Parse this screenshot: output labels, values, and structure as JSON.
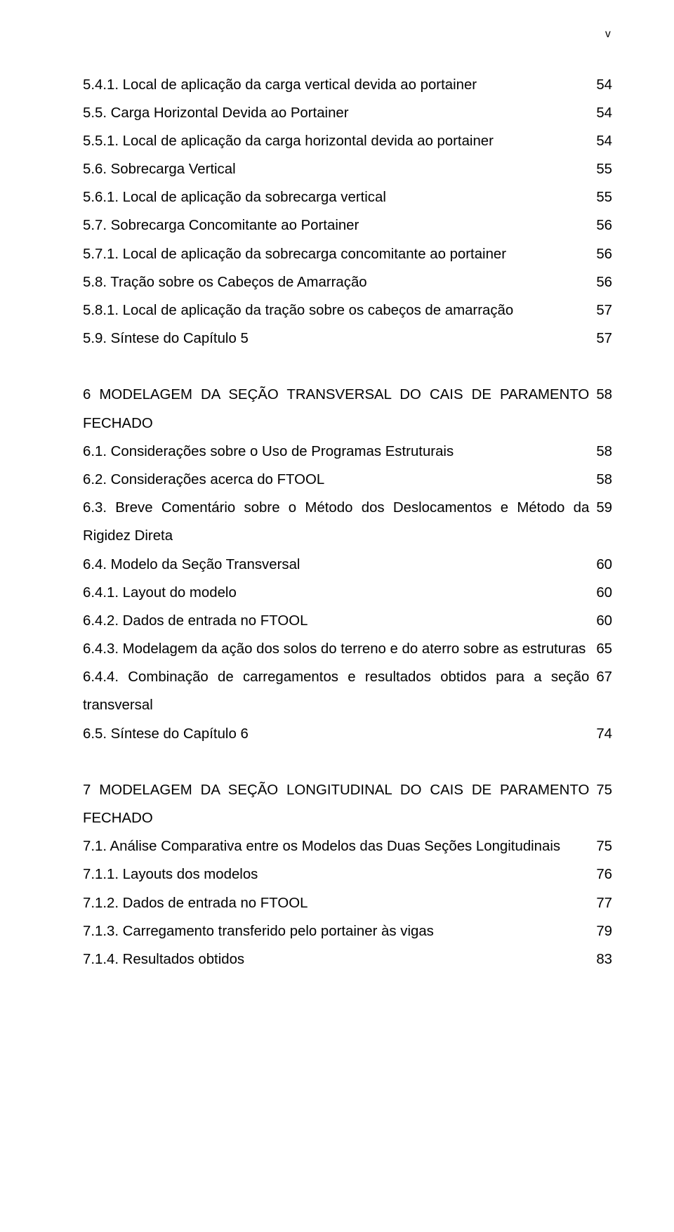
{
  "typography": {
    "font_family": "Arial",
    "body_fontsize_pt": 15,
    "line_height": 1.97,
    "text_color": "#000000",
    "background_color": "#ffffff"
  },
  "page_marker": "v",
  "entries": [
    {
      "label": "5.4.1. Local de aplicação da carga vertical devida ao portainer",
      "page": "54"
    },
    {
      "label": "5.5. Carga Horizontal Devida ao Portainer",
      "page": "54"
    },
    {
      "label": "5.5.1. Local de aplicação da carga horizontal devida ao portainer",
      "page": "54"
    },
    {
      "label": "5.6. Sobrecarga Vertical",
      "page": "55"
    },
    {
      "label": "5.6.1. Local de aplicação da sobrecarga vertical",
      "page": "55"
    },
    {
      "label": "5.7. Sobrecarga Concomitante ao Portainer",
      "page": "56"
    },
    {
      "label": "5.7.1. Local de aplicação da sobrecarga concomitante ao portainer",
      "page": "56"
    },
    {
      "label": "5.8. Tração sobre os Cabeços de Amarração",
      "page": "56"
    },
    {
      "label": "5.8.1. Local de aplicação da tração sobre os cabeços de amarração",
      "page": "57"
    },
    {
      "label": "5.9. Síntese do Capítulo 5",
      "page": "57"
    },
    {
      "gap": true
    },
    {
      "label": "6 MODELAGEM DA SEÇÃO TRANSVERSAL DO CAIS DE PARAMENTO FECHADO",
      "page": "58"
    },
    {
      "label": "6.1. Considerações sobre o Uso de Programas Estruturais",
      "page": "58"
    },
    {
      "label": "6.2. Considerações acerca do FTOOL",
      "page": "58"
    },
    {
      "label": "6.3. Breve Comentário sobre o Método dos Deslocamentos e Método da Rigidez Direta",
      "page": "59"
    },
    {
      "label": "6.4. Modelo da Seção Transversal",
      "page": "60"
    },
    {
      "label": "6.4.1. Layout do modelo",
      "page": "60"
    },
    {
      "label": "6.4.2. Dados de entrada no FTOOL",
      "page": "60"
    },
    {
      "label": "6.4.3. Modelagem da ação dos solos do terreno e do aterro sobre as estruturas",
      "page": "65"
    },
    {
      "label": "6.4.4. Combinação de carregamentos e resultados obtidos para a seção transversal",
      "page": "67"
    },
    {
      "label": "6.5. Síntese do Capítulo 6",
      "page": "74"
    },
    {
      "gap": true
    },
    {
      "label": "7 MODELAGEM DA SEÇÃO LONGITUDINAL DO CAIS DE PARAMENTO FECHADO",
      "page": "75"
    },
    {
      "label": "7.1. Análise Comparativa entre os Modelos das Duas Seções Longitudinais",
      "page": "75"
    },
    {
      "label": "7.1.1. Layouts dos modelos",
      "page": "76"
    },
    {
      "label": "7.1.2. Dados de entrada no FTOOL",
      "page": "77"
    },
    {
      "label": "7.1.3. Carregamento transferido pelo portainer às vigas",
      "page": "79"
    },
    {
      "label": "7.1.4. Resultados obtidos",
      "page": "83"
    }
  ]
}
